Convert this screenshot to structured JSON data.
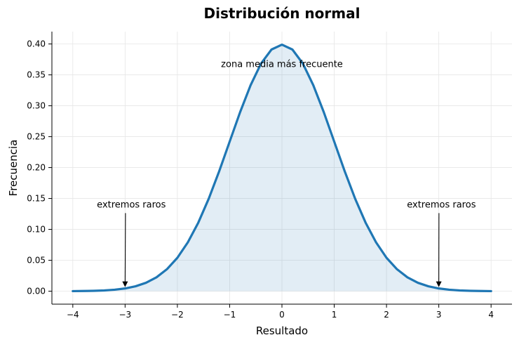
{
  "chart_data": {
    "type": "line",
    "title": "Distribución normal",
    "xlabel": "Resultado",
    "ylabel": "Frecuencia",
    "xlim": [
      -4.4,
      4.4
    ],
    "ylim": [
      -0.021,
      0.42
    ],
    "grid": true,
    "x_ticks": [
      -4,
      -3,
      -2,
      -1,
      0,
      1,
      2,
      3,
      4
    ],
    "x_tick_labels": [
      "−4",
      "−3",
      "−2",
      "−1",
      "0",
      "1",
      "2",
      "3",
      "4"
    ],
    "y_ticks": [
      0.0,
      0.05,
      0.1,
      0.15,
      0.2,
      0.25,
      0.3,
      0.35,
      0.4
    ],
    "y_tick_labels": [
      "0.00",
      "0.05",
      "0.10",
      "0.15",
      "0.20",
      "0.25",
      "0.30",
      "0.35",
      "0.40"
    ],
    "series": [
      {
        "color": "#1f77b4",
        "fill_color": "#1f77b4",
        "fill_opacity": 0.13,
        "x": [
          -4,
          -3.8,
          -3.6,
          -3.4,
          -3.2,
          -3,
          -2.8,
          -2.6,
          -2.4,
          -2.2,
          -2,
          -1.8,
          -1.6,
          -1.4,
          -1.2,
          -1,
          -0.8,
          -0.6,
          -0.4,
          -0.2,
          0,
          0.2,
          0.4,
          0.6,
          0.8,
          1,
          1.2,
          1.4,
          1.6,
          1.8,
          2,
          2.2,
          2.4,
          2.6,
          2.8,
          3,
          3.2,
          3.4,
          3.6,
          3.8,
          4
        ],
        "y": [
          0.0001,
          0.0003,
          0.0006,
          0.0012,
          0.0024,
          0.0044,
          0.0079,
          0.0136,
          0.0224,
          0.0355,
          0.054,
          0.079,
          0.1109,
          0.1497,
          0.1942,
          0.242,
          0.2897,
          0.3332,
          0.3683,
          0.391,
          0.3989,
          0.391,
          0.3683,
          0.3332,
          0.2897,
          0.242,
          0.1942,
          0.1497,
          0.1109,
          0.079,
          0.054,
          0.0355,
          0.0224,
          0.0136,
          0.0079,
          0.0044,
          0.0024,
          0.0012,
          0.0006,
          0.0003,
          0.0001
        ]
      }
    ],
    "annotations": [
      {
        "text": "zona media más frecuente",
        "x": 0,
        "y": 0.367,
        "arrow": false
      },
      {
        "text": "extremos raros",
        "x": -2.88,
        "y": 0.14,
        "point_x": -3,
        "point_y": 0.0044,
        "arrow": true
      },
      {
        "text": "extremos raros",
        "x": 3.05,
        "y": 0.14,
        "point_x": 3,
        "point_y": 0.0044,
        "arrow": true
      }
    ]
  }
}
